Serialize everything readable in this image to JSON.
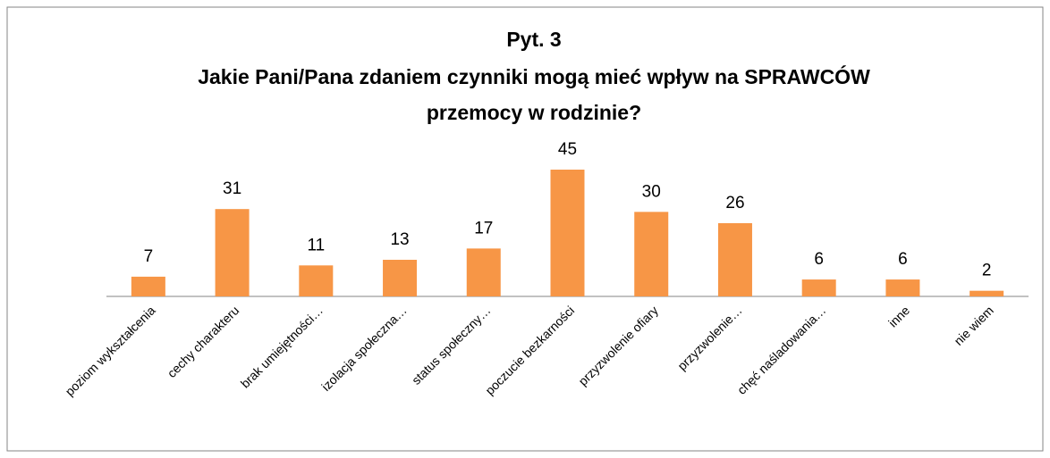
{
  "chart_data": {
    "type": "bar",
    "title": [
      "Pyt. 3",
      "Jakie Pani/Pana zdaniem czynniki mogą mieć wpływ na SPRAWCÓW",
      "przemocy w rodzinie?"
    ],
    "categories": [
      "poziom wykształcenia",
      "cechy charakteru",
      "brak umiejętności…",
      "izolacja społeczna…",
      "status społeczny…",
      "poczucie bezkarności",
      "przyzwolenie ofiary",
      "przyzwolenie…",
      "chęć naśladowania…",
      "inne",
      "nie wiem"
    ],
    "values": [
      7,
      31,
      11,
      13,
      17,
      45,
      30,
      26,
      6,
      6,
      2
    ],
    "color": "#f79646"
  }
}
